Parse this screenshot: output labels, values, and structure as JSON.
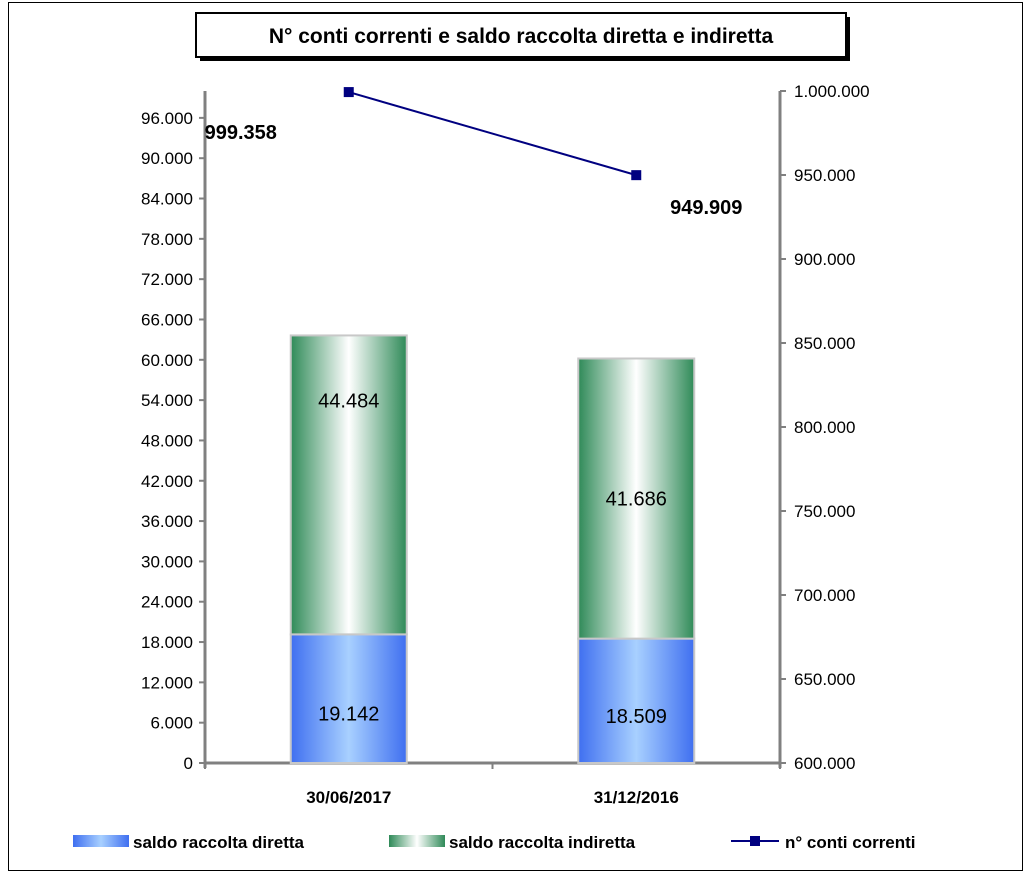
{
  "chart_data": {
    "type": "bar",
    "stacked": true,
    "title": "N° conti correnti e saldo raccolta diretta e indiretta",
    "categories": [
      "30/06/2017",
      "31/12/2016"
    ],
    "series": [
      {
        "name": "saldo raccolta diretta",
        "type": "bar",
        "axis": "left",
        "values": [
          19142,
          18509
        ],
        "labels": [
          "19.142",
          "18.509"
        ],
        "color": "#5b8ff9"
      },
      {
        "name": "saldo raccolta indiretta",
        "type": "bar",
        "axis": "left",
        "values": [
          44484,
          41686
        ],
        "labels": [
          "44.484",
          "41.686"
        ],
        "color": "#3a9a5e"
      },
      {
        "name": "n° conti correnti",
        "type": "line",
        "axis": "right",
        "values": [
          999358,
          949909
        ],
        "labels": [
          "999.358",
          "949.909"
        ],
        "color": "#000080"
      }
    ],
    "y_left": {
      "ylim": [
        0,
        100000
      ],
      "ticks": [
        0,
        6000,
        12000,
        18000,
        24000,
        30000,
        36000,
        42000,
        48000,
        54000,
        60000,
        66000,
        72000,
        78000,
        84000,
        90000,
        96000
      ],
      "tick_labels": [
        "0",
        "6.000",
        "12.000",
        "18.000",
        "24.000",
        "30.000",
        "36.000",
        "42.000",
        "48.000",
        "54.000",
        "60.000",
        "66.000",
        "72.000",
        "78.000",
        "84.000",
        "90.000",
        "96.000"
      ]
    },
    "y_right": {
      "ylim": [
        600000,
        1000000
      ],
      "ticks": [
        600000,
        650000,
        700000,
        750000,
        800000,
        850000,
        900000,
        950000,
        1000000
      ],
      "tick_labels": [
        "600.000",
        "650.000",
        "700.000",
        "750.000",
        "800.000",
        "850.000",
        "900.000",
        "950.000",
        "1.000.000"
      ]
    },
    "grid": false,
    "legend_position": "bottom"
  }
}
